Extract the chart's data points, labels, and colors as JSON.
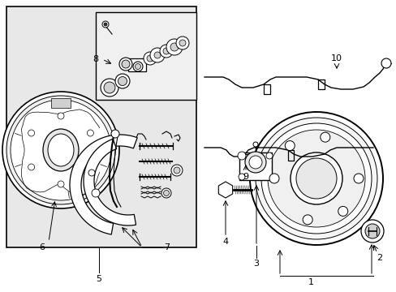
{
  "background_color": "#ffffff",
  "line_color": "#000000",
  "panel_bg": "#e8e8e8",
  "inner_box_bg": "#e0e0e0",
  "fig_width": 4.89,
  "fig_height": 3.6,
  "dpi": 100
}
